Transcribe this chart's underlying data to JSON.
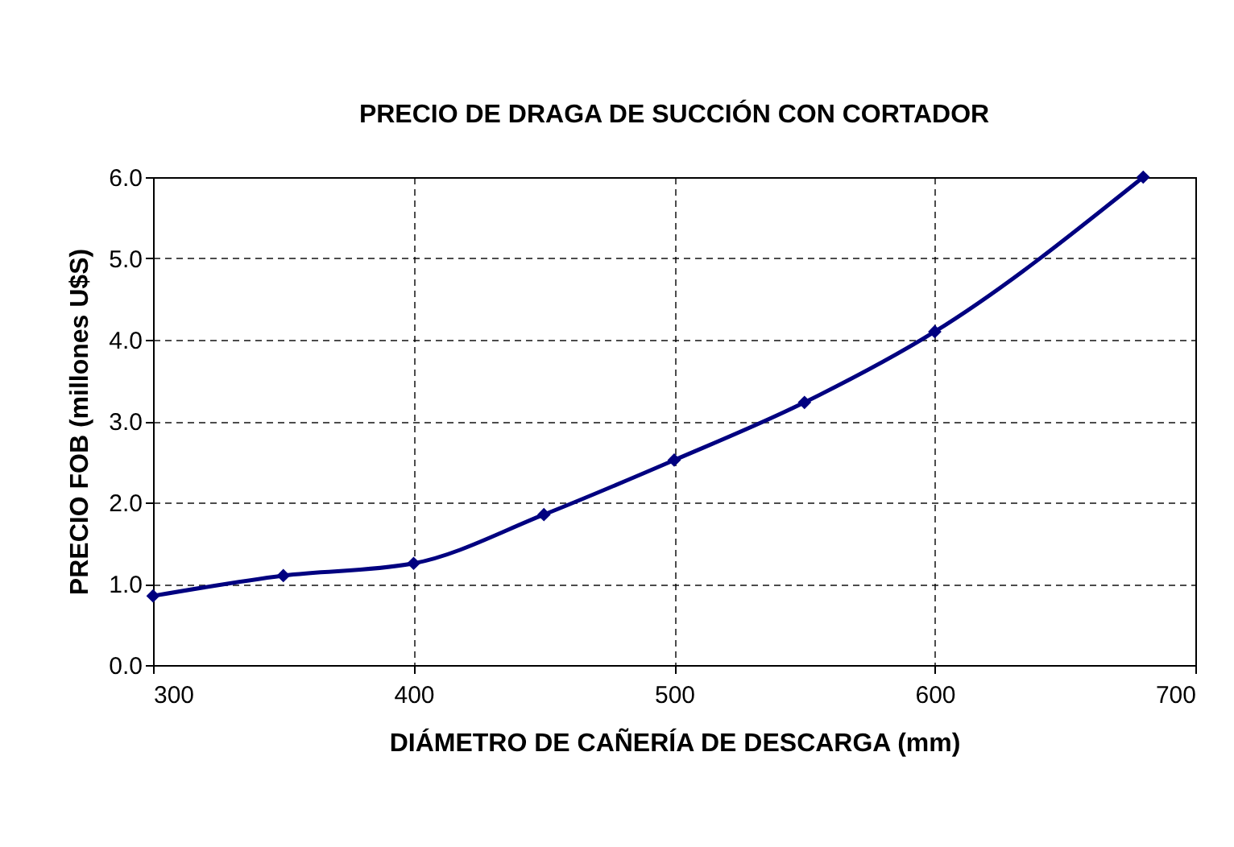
{
  "chart_data": {
    "type": "line",
    "title": "PRECIO DE DRAGA DE SUCCIÓN CON CORTADOR",
    "xlabel": "DIÁMETRO DE CAÑERÍA DE DESCARGA (mm)",
    "ylabel": "PRECIO FOB (millones U$S)",
    "x": [
      300,
      350,
      400,
      450,
      500,
      550,
      600,
      680
    ],
    "series": [
      {
        "color": "#000080",
        "values": [
          0.85,
          1.1,
          1.25,
          1.85,
          2.52,
          3.23,
          4.1,
          6.0
        ]
      }
    ],
    "xlim": [
      300,
      700
    ],
    "xticks": [
      300,
      400,
      500,
      600,
      700
    ],
    "ylim": [
      0,
      6
    ],
    "yticks": [
      {
        "value": 0,
        "label": "0.0"
      },
      {
        "value": 1,
        "label": "1.0"
      },
      {
        "value": 2,
        "label": "2.0"
      },
      {
        "value": 3,
        "label": "3.0"
      },
      {
        "value": 4,
        "label": "4.0"
      },
      {
        "value": 5,
        "label": "5.0"
      },
      {
        "value": 6,
        "label": "6.0"
      }
    ],
    "grid": true,
    "marker": "diamond",
    "line_style": "solid",
    "legend": false
  }
}
